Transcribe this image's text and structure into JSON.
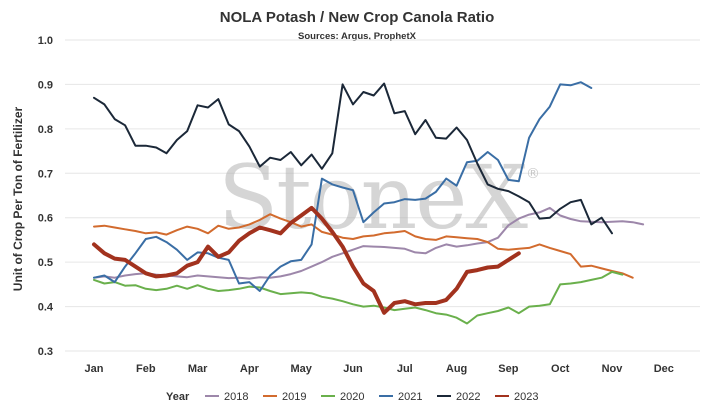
{
  "chart_data": {
    "type": "line",
    "title": "NOLA Potash / New Crop Canola Ratio",
    "subtitle": "Sources: Argus, ProphetX",
    "xlabel": "",
    "ylabel": "Unit of Crop Per Ton of Fertilizer",
    "ylim": [
      0.3,
      1.0
    ],
    "yticks": [
      "0.3",
      "0.4",
      "0.5",
      "0.6",
      "0.7",
      "0.8",
      "0.9",
      "1.0"
    ],
    "categories": [
      "Jan",
      "Feb",
      "Mar",
      "Apr",
      "May",
      "Jun",
      "Jul",
      "Aug",
      "Sep",
      "Oct",
      "Nov",
      "Dec"
    ],
    "grid": true,
    "legend_title": "Year",
    "legend_position": "bottom",
    "watermark": "StoneX",
    "series": [
      {
        "name": "2018",
        "color": "#9d87aa",
        "width": 2,
        "points": [
          [
            0.0,
            0.465
          ],
          [
            0.2,
            0.468
          ],
          [
            0.4,
            0.465
          ],
          [
            0.6,
            0.47
          ],
          [
            0.8,
            0.473
          ],
          [
            1.0,
            0.475
          ],
          [
            1.2,
            0.472
          ],
          [
            1.4,
            0.47
          ],
          [
            1.6,
            0.468
          ],
          [
            1.8,
            0.466
          ],
          [
            2.0,
            0.47
          ],
          [
            2.2,
            0.468
          ],
          [
            2.4,
            0.466
          ],
          [
            2.6,
            0.464
          ],
          [
            2.8,
            0.465
          ],
          [
            3.0,
            0.463
          ],
          [
            3.2,
            0.466
          ],
          [
            3.4,
            0.465
          ],
          [
            3.6,
            0.468
          ],
          [
            3.8,
            0.473
          ],
          [
            4.0,
            0.48
          ],
          [
            4.2,
            0.49
          ],
          [
            4.4,
            0.5
          ],
          [
            4.6,
            0.512
          ],
          [
            4.8,
            0.52
          ],
          [
            5.0,
            0.528
          ],
          [
            5.2,
            0.536
          ],
          [
            5.4,
            0.535
          ],
          [
            5.6,
            0.534
          ],
          [
            5.8,
            0.532
          ],
          [
            6.0,
            0.53
          ],
          [
            6.2,
            0.522
          ],
          [
            6.4,
            0.52
          ],
          [
            6.6,
            0.532
          ],
          [
            6.8,
            0.54
          ],
          [
            7.0,
            0.535
          ],
          [
            7.2,
            0.538
          ],
          [
            7.4,
            0.542
          ],
          [
            7.6,
            0.545
          ],
          [
            7.8,
            0.555
          ],
          [
            8.0,
            0.583
          ],
          [
            8.2,
            0.598
          ],
          [
            8.4,
            0.607
          ],
          [
            8.6,
            0.612
          ],
          [
            8.8,
            0.622
          ],
          [
            9.0,
            0.605
          ],
          [
            9.2,
            0.597
          ],
          [
            9.4,
            0.592
          ],
          [
            9.6,
            0.591
          ],
          [
            9.8,
            0.59
          ],
          [
            10.0,
            0.591
          ],
          [
            10.2,
            0.592
          ],
          [
            10.4,
            0.59
          ],
          [
            10.6,
            0.585
          ]
        ]
      },
      {
        "name": "2019",
        "color": "#d26b2e",
        "width": 2,
        "points": [
          [
            0.0,
            0.58
          ],
          [
            0.2,
            0.582
          ],
          [
            0.4,
            0.578
          ],
          [
            0.6,
            0.574
          ],
          [
            0.8,
            0.57
          ],
          [
            1.0,
            0.565
          ],
          [
            1.2,
            0.567
          ],
          [
            1.4,
            0.562
          ],
          [
            1.6,
            0.572
          ],
          [
            1.8,
            0.58
          ],
          [
            2.0,
            0.575
          ],
          [
            2.2,
            0.565
          ],
          [
            2.4,
            0.582
          ],
          [
            2.6,
            0.575
          ],
          [
            2.8,
            0.578
          ],
          [
            3.0,
            0.585
          ],
          [
            3.2,
            0.595
          ],
          [
            3.4,
            0.608
          ],
          [
            3.6,
            0.598
          ],
          [
            3.8,
            0.59
          ],
          [
            4.0,
            0.58
          ],
          [
            4.2,
            0.585
          ],
          [
            4.4,
            0.568
          ],
          [
            4.6,
            0.562
          ],
          [
            4.8,
            0.555
          ],
          [
            5.0,
            0.552
          ],
          [
            5.2,
            0.558
          ],
          [
            5.4,
            0.56
          ],
          [
            5.6,
            0.565
          ],
          [
            5.8,
            0.567
          ],
          [
            6.0,
            0.57
          ],
          [
            6.2,
            0.558
          ],
          [
            6.4,
            0.552
          ],
          [
            6.6,
            0.55
          ],
          [
            6.8,
            0.558
          ],
          [
            7.0,
            0.556
          ],
          [
            7.2,
            0.554
          ],
          [
            7.4,
            0.552
          ],
          [
            7.6,
            0.545
          ],
          [
            7.8,
            0.53
          ],
          [
            8.0,
            0.528
          ],
          [
            8.2,
            0.53
          ],
          [
            8.4,
            0.532
          ],
          [
            8.6,
            0.54
          ],
          [
            8.8,
            0.532
          ],
          [
            9.0,
            0.525
          ],
          [
            9.2,
            0.518
          ],
          [
            9.4,
            0.49
          ],
          [
            9.6,
            0.492
          ],
          [
            9.8,
            0.486
          ],
          [
            10.0,
            0.48
          ],
          [
            10.2,
            0.475
          ],
          [
            10.4,
            0.465
          ]
        ]
      },
      {
        "name": "2020",
        "color": "#6ab04c",
        "width": 2,
        "points": [
          [
            0.0,
            0.46
          ],
          [
            0.2,
            0.452
          ],
          [
            0.4,
            0.455
          ],
          [
            0.6,
            0.447
          ],
          [
            0.8,
            0.448
          ],
          [
            1.0,
            0.44
          ],
          [
            1.2,
            0.437
          ],
          [
            1.4,
            0.44
          ],
          [
            1.6,
            0.447
          ],
          [
            1.8,
            0.44
          ],
          [
            2.0,
            0.448
          ],
          [
            2.2,
            0.44
          ],
          [
            2.4,
            0.435
          ],
          [
            2.6,
            0.437
          ],
          [
            2.8,
            0.44
          ],
          [
            3.0,
            0.445
          ],
          [
            3.2,
            0.443
          ],
          [
            3.4,
            0.435
          ],
          [
            3.6,
            0.428
          ],
          [
            3.8,
            0.43
          ],
          [
            4.0,
            0.432
          ],
          [
            4.2,
            0.43
          ],
          [
            4.4,
            0.422
          ],
          [
            4.6,
            0.418
          ],
          [
            4.8,
            0.412
          ],
          [
            5.0,
            0.405
          ],
          [
            5.2,
            0.4
          ],
          [
            5.4,
            0.402
          ],
          [
            5.6,
            0.398
          ],
          [
            5.8,
            0.392
          ],
          [
            6.0,
            0.395
          ],
          [
            6.2,
            0.398
          ],
          [
            6.4,
            0.392
          ],
          [
            6.6,
            0.385
          ],
          [
            6.8,
            0.382
          ],
          [
            7.0,
            0.375
          ],
          [
            7.2,
            0.362
          ],
          [
            7.4,
            0.38
          ],
          [
            7.6,
            0.385
          ],
          [
            7.8,
            0.39
          ],
          [
            8.0,
            0.398
          ],
          [
            8.2,
            0.385
          ],
          [
            8.4,
            0.4
          ],
          [
            8.6,
            0.402
          ],
          [
            8.8,
            0.405
          ],
          [
            9.0,
            0.45
          ],
          [
            9.2,
            0.452
          ],
          [
            9.4,
            0.455
          ],
          [
            9.6,
            0.46
          ],
          [
            9.8,
            0.465
          ],
          [
            10.0,
            0.478
          ],
          [
            10.2,
            0.472
          ]
        ]
      },
      {
        "name": "2021",
        "color": "#3a6ea5",
        "width": 2,
        "points": [
          [
            0.0,
            0.465
          ],
          [
            0.2,
            0.47
          ],
          [
            0.4,
            0.455
          ],
          [
            0.6,
            0.49
          ],
          [
            0.8,
            0.52
          ],
          [
            1.0,
            0.552
          ],
          [
            1.2,
            0.557
          ],
          [
            1.4,
            0.545
          ],
          [
            1.6,
            0.528
          ],
          [
            1.8,
            0.505
          ],
          [
            2.0,
            0.522
          ],
          [
            2.2,
            0.52
          ],
          [
            2.4,
            0.51
          ],
          [
            2.6,
            0.505
          ],
          [
            2.8,
            0.452
          ],
          [
            3.0,
            0.455
          ],
          [
            3.2,
            0.435
          ],
          [
            3.4,
            0.47
          ],
          [
            3.6,
            0.49
          ],
          [
            3.8,
            0.502
          ],
          [
            4.0,
            0.505
          ],
          [
            4.2,
            0.54
          ],
          [
            4.4,
            0.688
          ],
          [
            4.6,
            0.675
          ],
          [
            4.8,
            0.668
          ],
          [
            5.0,
            0.662
          ],
          [
            5.2,
            0.59
          ],
          [
            5.4,
            0.612
          ],
          [
            5.6,
            0.632
          ],
          [
            5.8,
            0.635
          ],
          [
            6.0,
            0.642
          ],
          [
            6.2,
            0.64
          ],
          [
            6.4,
            0.643
          ],
          [
            6.6,
            0.658
          ],
          [
            6.8,
            0.688
          ],
          [
            7.0,
            0.672
          ],
          [
            7.2,
            0.725
          ],
          [
            7.4,
            0.728
          ],
          [
            7.6,
            0.748
          ],
          [
            7.8,
            0.73
          ],
          [
            8.0,
            0.685
          ],
          [
            8.2,
            0.682
          ],
          [
            8.4,
            0.78
          ],
          [
            8.6,
            0.822
          ],
          [
            8.8,
            0.85
          ],
          [
            9.0,
            0.9
          ],
          [
            9.2,
            0.898
          ],
          [
            9.4,
            0.905
          ],
          [
            9.6,
            0.892
          ]
        ]
      },
      {
        "name": "2022",
        "color": "#1b2838",
        "width": 2,
        "points": [
          [
            0.0,
            0.87
          ],
          [
            0.2,
            0.855
          ],
          [
            0.4,
            0.822
          ],
          [
            0.6,
            0.808
          ],
          [
            0.8,
            0.762
          ],
          [
            1.0,
            0.762
          ],
          [
            1.2,
            0.758
          ],
          [
            1.4,
            0.745
          ],
          [
            1.6,
            0.775
          ],
          [
            1.8,
            0.795
          ],
          [
            2.0,
            0.853
          ],
          [
            2.2,
            0.848
          ],
          [
            2.4,
            0.867
          ],
          [
            2.6,
            0.81
          ],
          [
            2.8,
            0.795
          ],
          [
            3.0,
            0.76
          ],
          [
            3.2,
            0.715
          ],
          [
            3.4,
            0.735
          ],
          [
            3.6,
            0.73
          ],
          [
            3.8,
            0.748
          ],
          [
            4.0,
            0.718
          ],
          [
            4.2,
            0.742
          ],
          [
            4.4,
            0.71
          ],
          [
            4.6,
            0.745
          ],
          [
            4.8,
            0.9
          ],
          [
            5.0,
            0.855
          ],
          [
            5.2,
            0.883
          ],
          [
            5.4,
            0.875
          ],
          [
            5.6,
            0.902
          ],
          [
            5.8,
            0.835
          ],
          [
            6.0,
            0.84
          ],
          [
            6.2,
            0.788
          ],
          [
            6.4,
            0.82
          ],
          [
            6.6,
            0.78
          ],
          [
            6.8,
            0.778
          ],
          [
            7.0,
            0.803
          ],
          [
            7.2,
            0.775
          ],
          [
            7.4,
            0.722
          ],
          [
            7.6,
            0.675
          ],
          [
            7.8,
            0.665
          ],
          [
            8.0,
            0.66
          ],
          [
            8.2,
            0.648
          ],
          [
            8.4,
            0.635
          ],
          [
            8.6,
            0.598
          ],
          [
            8.8,
            0.6
          ],
          [
            9.0,
            0.62
          ],
          [
            9.2,
            0.635
          ],
          [
            9.4,
            0.64
          ],
          [
            9.6,
            0.585
          ],
          [
            9.8,
            0.6
          ],
          [
            10.0,
            0.565
          ]
        ]
      },
      {
        "name": "2023",
        "color": "#a2321e",
        "width": 4,
        "points": [
          [
            0.0,
            0.54
          ],
          [
            0.2,
            0.52
          ],
          [
            0.4,
            0.508
          ],
          [
            0.6,
            0.505
          ],
          [
            0.8,
            0.49
          ],
          [
            1.0,
            0.475
          ],
          [
            1.2,
            0.468
          ],
          [
            1.4,
            0.47
          ],
          [
            1.6,
            0.475
          ],
          [
            1.8,
            0.492
          ],
          [
            2.0,
            0.5
          ],
          [
            2.2,
            0.535
          ],
          [
            2.4,
            0.512
          ],
          [
            2.6,
            0.522
          ],
          [
            2.8,
            0.548
          ],
          [
            3.0,
            0.565
          ],
          [
            3.2,
            0.578
          ],
          [
            3.4,
            0.572
          ],
          [
            3.6,
            0.565
          ],
          [
            3.8,
            0.588
          ],
          [
            4.0,
            0.605
          ],
          [
            4.2,
            0.622
          ],
          [
            4.4,
            0.598
          ],
          [
            4.6,
            0.568
          ],
          [
            4.8,
            0.535
          ],
          [
            5.0,
            0.49
          ],
          [
            5.2,
            0.452
          ],
          [
            5.4,
            0.435
          ],
          [
            5.6,
            0.386
          ],
          [
            5.8,
            0.408
          ],
          [
            6.0,
            0.412
          ],
          [
            6.2,
            0.405
          ],
          [
            6.4,
            0.408
          ],
          [
            6.6,
            0.408
          ],
          [
            6.8,
            0.415
          ],
          [
            7.0,
            0.44
          ],
          [
            7.2,
            0.478
          ],
          [
            7.4,
            0.482
          ],
          [
            7.6,
            0.488
          ],
          [
            7.8,
            0.49
          ],
          [
            8.0,
            0.505
          ],
          [
            8.2,
            0.52
          ]
        ]
      }
    ]
  }
}
